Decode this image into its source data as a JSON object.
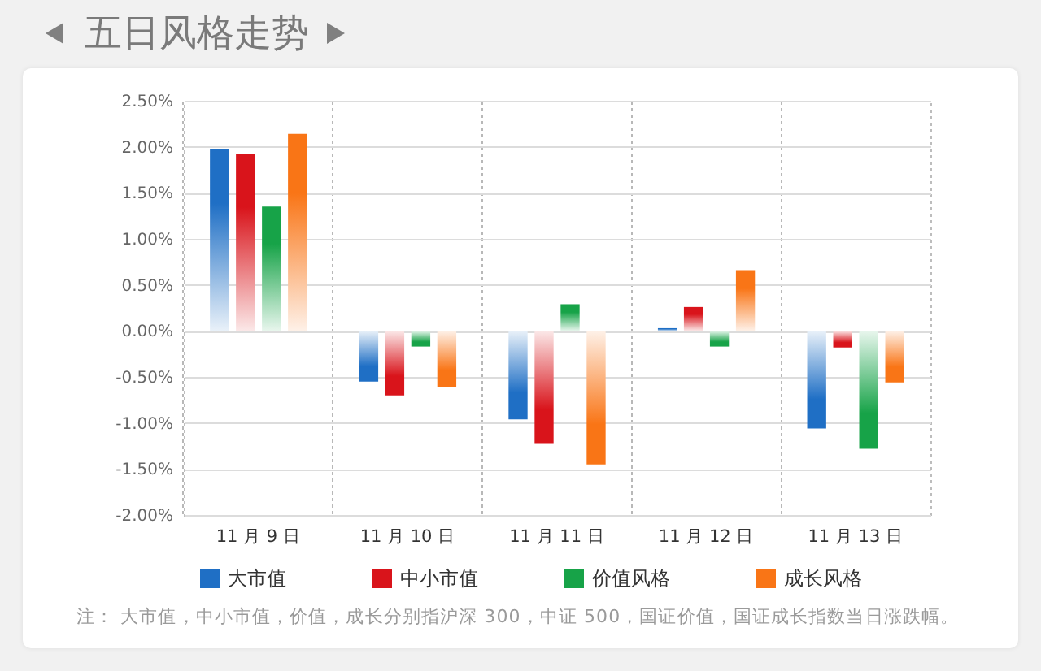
{
  "chart_data": {
    "type": "bar",
    "title": "五日风格走势",
    "categories": [
      "11 月 9 日",
      "11 月 10 日",
      "11 月 11 日",
      "11 月 12 日",
      "11 月 13 日"
    ],
    "series": [
      {
        "name": "大市值",
        "color": "#1f6fc5",
        "values": [
          1.98,
          -0.55,
          -0.96,
          0.03,
          -1.06
        ]
      },
      {
        "name": "中小市值",
        "color": "#d9141b",
        "values": [
          1.92,
          -0.7,
          -1.22,
          0.26,
          -0.18
        ]
      },
      {
        "name": "价值风格",
        "color": "#17a348",
        "values": [
          1.35,
          -0.17,
          0.29,
          -0.17,
          -1.28
        ]
      },
      {
        "name": "成长风格",
        "color": "#f97516",
        "values": [
          2.14,
          -0.61,
          -1.45,
          0.66,
          -0.56
        ]
      }
    ],
    "ylim": [
      -2,
      2.5
    ],
    "yticks": [
      {
        "value": -2,
        "label": "-2.00%"
      },
      {
        "value": -1.5,
        "label": "-1.50%"
      },
      {
        "value": -1,
        "label": "-1.00%"
      },
      {
        "value": -0.5,
        "label": "-0.50%"
      },
      {
        "value": 0,
        "label": "0.00%"
      },
      {
        "value": 0.5,
        "label": "0.50%"
      },
      {
        "value": 1,
        "label": "1.00%"
      },
      {
        "value": 1.5,
        "label": "1.50%"
      },
      {
        "value": 2,
        "label": "2.00%"
      },
      {
        "value": 2.5,
        "label": "2.50%"
      }
    ],
    "grid": true,
    "legend": "bottom",
    "annotations": [
      "注： 大市值，中小市值，价值，成长分别指沪深 300，中证 500，国证价值，国证成长指数当日涨跌幅。"
    ]
  }
}
